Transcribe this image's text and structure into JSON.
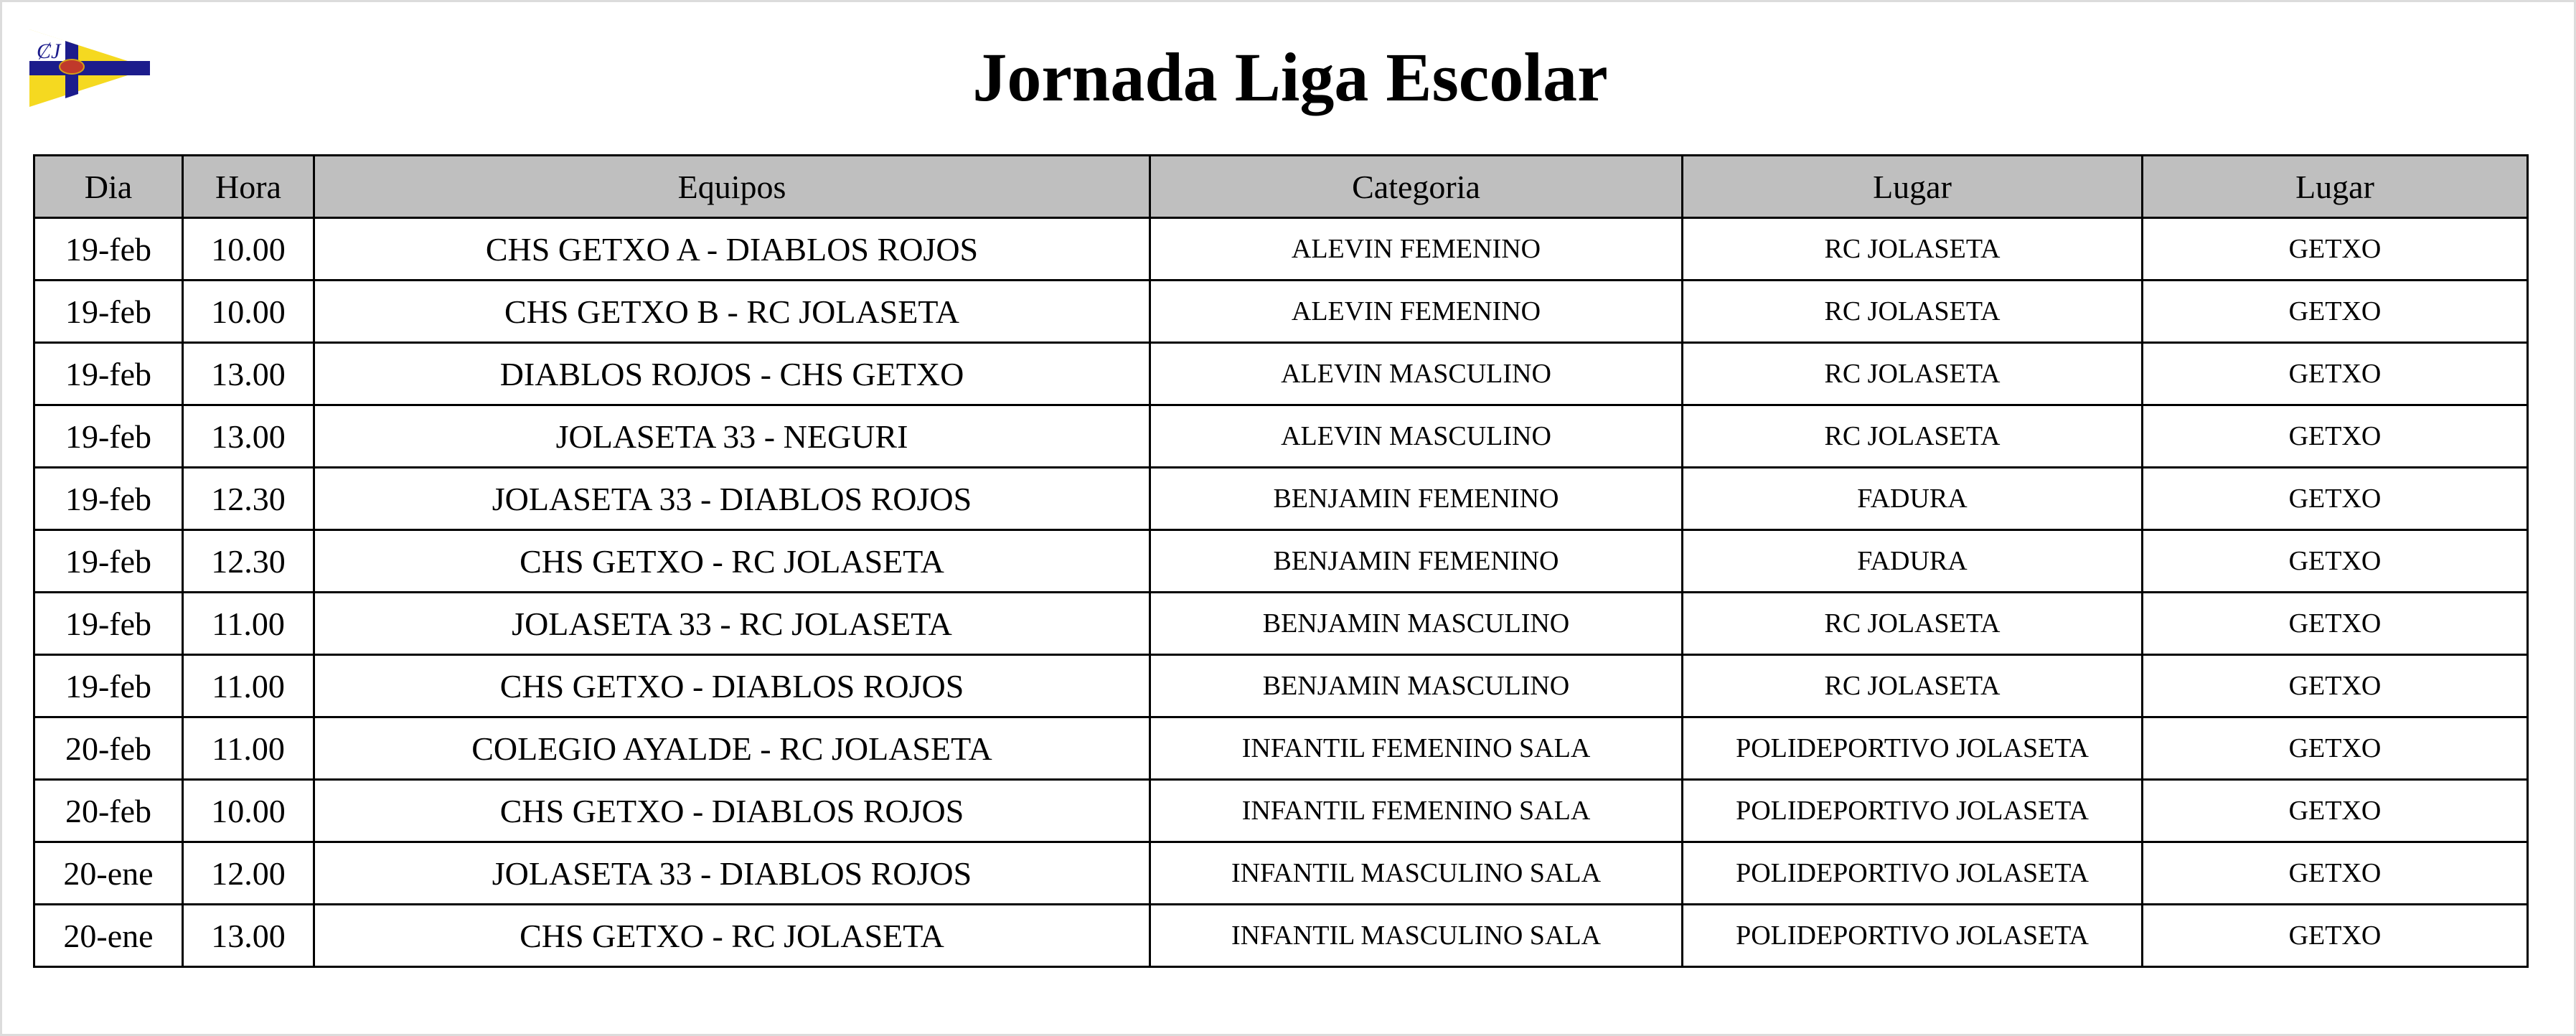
{
  "header": {
    "title": "Jornada Liga Escolar",
    "logo": {
      "name": "club-pennant-logo",
      "lettering": "CJ",
      "colors": {
        "yellow": "#f5d920",
        "blue": "#1c1c8c",
        "white": "#ffffff"
      }
    }
  },
  "table": {
    "header_bg": "#bfbfbf",
    "columns": [
      "Dia",
      "Hora",
      "Equipos",
      "Categoria",
      "Lugar",
      "Lugar"
    ],
    "rows": [
      [
        "19-feb",
        "10.00",
        "CHS GETXO A - DIABLOS ROJOS",
        "ALEVIN FEMENINO",
        "RC JOLASETA",
        "GETXO"
      ],
      [
        "19-feb",
        "10.00",
        "CHS GETXO B - RC JOLASETA",
        "ALEVIN FEMENINO",
        "RC JOLASETA",
        "GETXO"
      ],
      [
        "19-feb",
        "13.00",
        "DIABLOS ROJOS - CHS GETXO",
        "ALEVIN MASCULINO",
        "RC JOLASETA",
        "GETXO"
      ],
      [
        "19-feb",
        "13.00",
        "JOLASETA 33 - NEGURI",
        "ALEVIN MASCULINO",
        "RC JOLASETA",
        "GETXO"
      ],
      [
        "19-feb",
        "12.30",
        "JOLASETA 33 - DIABLOS ROJOS",
        "BENJAMIN FEMENINO",
        "FADURA",
        "GETXO"
      ],
      [
        "19-feb",
        "12.30",
        "CHS GETXO - RC JOLASETA",
        "BENJAMIN FEMENINO",
        "FADURA",
        "GETXO"
      ],
      [
        "19-feb",
        "11.00",
        "JOLASETA 33 - RC JOLASETA",
        "BENJAMIN MASCULINO",
        "RC JOLASETA",
        "GETXO"
      ],
      [
        "19-feb",
        "11.00",
        "CHS GETXO - DIABLOS ROJOS",
        "BENJAMIN MASCULINO",
        "RC JOLASETA",
        "GETXO"
      ],
      [
        "20-feb",
        "11.00",
        "COLEGIO AYALDE - RC JOLASETA",
        "INFANTIL FEMENINO SALA",
        "POLIDEPORTIVO JOLASETA",
        "GETXO"
      ],
      [
        "20-feb",
        "10.00",
        "CHS GETXO - DIABLOS ROJOS",
        "INFANTIL FEMENINO SALA",
        "POLIDEPORTIVO JOLASETA",
        "GETXO"
      ],
      [
        "20-ene",
        "12.00",
        "JOLASETA 33 - DIABLOS ROJOS",
        "INFANTIL MASCULINO SALA",
        "POLIDEPORTIVO JOLASETA",
        "GETXO"
      ],
      [
        "20-ene",
        "13.00",
        "CHS GETXO - RC JOLASETA",
        "INFANTIL MASCULINO SALA",
        "POLIDEPORTIVO JOLASETA",
        "GETXO"
      ]
    ]
  }
}
